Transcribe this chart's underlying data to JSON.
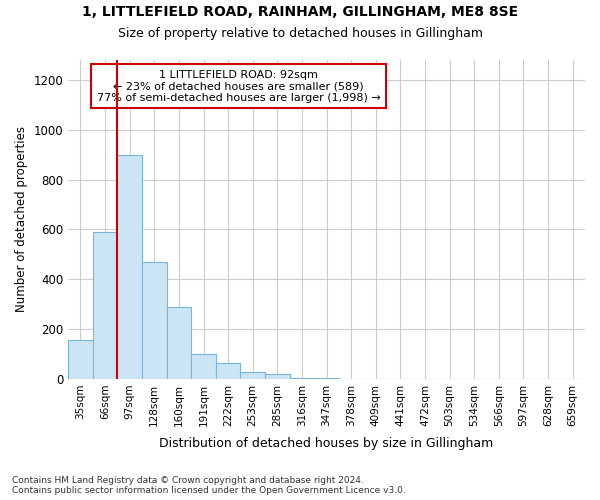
{
  "title": "1, LITTLEFIELD ROAD, RAINHAM, GILLINGHAM, ME8 8SE",
  "subtitle": "Size of property relative to detached houses in Gillingham",
  "xlabel": "Distribution of detached houses by size in Gillingham",
  "ylabel": "Number of detached properties",
  "bar_color": "#cce5f5",
  "bar_edge_color": "#7ab5d8",
  "categories": [
    "35sqm",
    "66sqm",
    "97sqm",
    "128sqm",
    "160sqm",
    "191sqm",
    "222sqm",
    "253sqm",
    "285sqm",
    "316sqm",
    "347sqm",
    "378sqm",
    "409sqm",
    "441sqm",
    "472sqm",
    "503sqm",
    "534sqm",
    "566sqm",
    "597sqm",
    "628sqm",
    "659sqm"
  ],
  "values": [
    155,
    590,
    900,
    470,
    290,
    100,
    65,
    28,
    18,
    4,
    2,
    1,
    1,
    0,
    0,
    0,
    0,
    0,
    0,
    0,
    0
  ],
  "vline_index": 1.5,
  "annotation_line1": "1 LITTLEFIELD ROAD: 92sqm",
  "annotation_line2": "← 23% of detached houses are smaller (589)",
  "annotation_line3": "77% of semi-detached houses are larger (1,998) →",
  "annotation_box_color": "#ffffff",
  "annotation_box_edge_color": "#cc0000",
  "vline_color": "#cc0000",
  "ylim": [
    0,
    1280
  ],
  "yticks": [
    0,
    200,
    400,
    600,
    800,
    1000,
    1200
  ],
  "footer_line1": "Contains HM Land Registry data © Crown copyright and database right 2024.",
  "footer_line2": "Contains public sector information licensed under the Open Government Licence v3.0.",
  "background_color": "#ffffff",
  "grid_color": "#cccccc"
}
